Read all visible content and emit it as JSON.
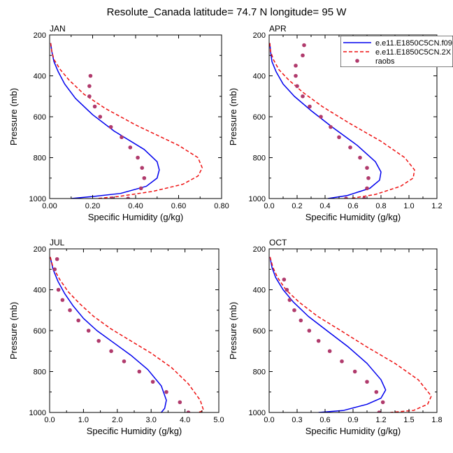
{
  "title": "Resolute_Canada  latitude= 74.7 N longitude= 95 W",
  "colors": {
    "model1": "#0000ee",
    "model2": "#ee1111",
    "raobs": "#b03a6c",
    "frame": "#000000"
  },
  "legend": {
    "items": [
      {
        "label": "e.e11.E1850C5CN.f09",
        "style": "solid"
      },
      {
        "label": "e.e11.E1850C5CN.2X",
        "style": "dashed"
      },
      {
        "label": "raobs",
        "style": "dots"
      }
    ]
  },
  "chart_data": [
    {
      "type": "line",
      "panel": "JAN",
      "title": "JAN",
      "xlabel": "Specific Humidity (g/kg)",
      "ylabel": "Pressure (mb)",
      "xlim": [
        0,
        0.8
      ],
      "ylim": [
        1000,
        200
      ],
      "xticks": [
        0,
        0.2,
        0.4,
        0.6,
        0.8
      ],
      "xtick_labels": [
        "0.00",
        "0.20",
        "0.40",
        "0.60",
        "0.80"
      ],
      "yticks": [
        200,
        400,
        600,
        800,
        1000
      ],
      "ytick_labels": [
        "200",
        "400",
        "600",
        "800",
        "1000"
      ],
      "series": [
        {
          "name": "e.e11.E1850C5CN.f09",
          "style": "solid",
          "x": [
            0.005,
            0.01,
            0.02,
            0.04,
            0.07,
            0.12,
            0.2,
            0.3,
            0.44,
            0.5,
            0.51,
            0.5,
            0.45,
            0.33,
            0.2,
            0.1
          ],
          "y": [
            240,
            280,
            330,
            380,
            440,
            510,
            590,
            670,
            760,
            820,
            860,
            900,
            940,
            975,
            990,
            1000
          ]
        },
        {
          "name": "e.e11.E1850C5CN.2X",
          "style": "dashed",
          "x": [
            0.005,
            0.01,
            0.02,
            0.05,
            0.09,
            0.16,
            0.26,
            0.4,
            0.6,
            0.69,
            0.71,
            0.69,
            0.62,
            0.48,
            0.32,
            0.22
          ],
          "y": [
            240,
            280,
            320,
            370,
            420,
            490,
            560,
            640,
            740,
            800,
            850,
            890,
            930,
            965,
            990,
            1000
          ]
        },
        {
          "name": "raobs",
          "style": "dots",
          "x": [
            0.19,
            0.185,
            0.185,
            0.21,
            0.235,
            0.285,
            0.335,
            0.375,
            0.41,
            0.43,
            0.44,
            0.425,
            0.365,
            0.29
          ],
          "y": [
            400,
            450,
            500,
            550,
            600,
            650,
            700,
            750,
            800,
            850,
            900,
            950,
            1000,
            1000
          ]
        }
      ]
    },
    {
      "type": "line",
      "panel": "APR",
      "title": "APR",
      "xlabel": "Specific Humidity (g/kg)",
      "ylabel": "Pressure (mb)",
      "xlim": [
        0,
        1.2
      ],
      "ylim": [
        1000,
        200
      ],
      "xticks": [
        0,
        0.2,
        0.4,
        0.6,
        0.8,
        1.0,
        1.2
      ],
      "xtick_labels": [
        "0.0",
        "0.2",
        "0.4",
        "0.6",
        "0.8",
        "1.0",
        "1.2"
      ],
      "yticks": [
        200,
        400,
        600,
        800,
        1000
      ],
      "ytick_labels": [
        "200",
        "400",
        "600",
        "800",
        "1000"
      ],
      "series": [
        {
          "name": "e.e11.E1850C5CN.f09",
          "style": "solid",
          "x": [
            0.005,
            0.01,
            0.02,
            0.05,
            0.1,
            0.18,
            0.3,
            0.45,
            0.63,
            0.76,
            0.8,
            0.79,
            0.72,
            0.56,
            0.42
          ],
          "y": [
            240,
            280,
            330,
            380,
            440,
            500,
            570,
            650,
            740,
            820,
            870,
            910,
            950,
            985,
            1000
          ]
        },
        {
          "name": "e.e11.E1850C5CN.2X",
          "style": "dashed",
          "x": [
            0.005,
            0.01,
            0.03,
            0.07,
            0.14,
            0.24,
            0.38,
            0.57,
            0.8,
            0.97,
            1.04,
            1.03,
            0.94,
            0.76,
            0.58
          ],
          "y": [
            240,
            280,
            320,
            370,
            420,
            480,
            550,
            630,
            720,
            800,
            860,
            900,
            940,
            980,
            1000
          ]
        },
        {
          "name": "raobs",
          "style": "dots",
          "x": [
            0.25,
            0.24,
            0.19,
            0.19,
            0.2,
            0.24,
            0.29,
            0.37,
            0.44,
            0.5,
            0.58,
            0.65,
            0.7,
            0.71,
            0.7,
            0.68,
            0.55
          ],
          "y": [
            250,
            300,
            350,
            400,
            450,
            500,
            550,
            600,
            650,
            700,
            750,
            800,
            850,
            900,
            950,
            1000,
            1000
          ]
        }
      ]
    },
    {
      "type": "line",
      "panel": "JUL",
      "title": "JUL",
      "xlabel": "Specific Humidity (g/kg)",
      "ylabel": "Pressure (mb)",
      "xlim": [
        0,
        5.0
      ],
      "ylim": [
        1000,
        200
      ],
      "xticks": [
        0,
        1,
        2,
        3,
        4,
        5
      ],
      "xtick_labels": [
        "0.0",
        "1.0",
        "2.0",
        "3.0",
        "4.0",
        "5.0"
      ],
      "yticks": [
        200,
        400,
        600,
        800,
        1000
      ],
      "ytick_labels": [
        "200",
        "400",
        "600",
        "800",
        "1000"
      ],
      "series": [
        {
          "name": "e.e11.E1850C5CN.f09",
          "style": "solid",
          "x": [
            0.02,
            0.1,
            0.25,
            0.45,
            0.7,
            1.0,
            1.4,
            1.9,
            2.4,
            2.9,
            3.3,
            3.45,
            3.4,
            3.3
          ],
          "y": [
            240,
            300,
            360,
            420,
            480,
            540,
            600,
            660,
            720,
            790,
            870,
            940,
            980,
            1000
          ]
        },
        {
          "name": "e.e11.E1850C5CN.2X",
          "style": "dashed",
          "x": [
            0.02,
            0.1,
            0.3,
            0.55,
            0.9,
            1.3,
            1.8,
            2.4,
            3.0,
            3.6,
            4.1,
            4.45,
            4.55,
            4.4
          ],
          "y": [
            240,
            290,
            350,
            410,
            470,
            530,
            590,
            650,
            710,
            780,
            860,
            940,
            990,
            1000
          ]
        },
        {
          "name": "raobs",
          "style": "dots",
          "x": [
            0.22,
            0.15,
            0.26,
            0.38,
            0.6,
            0.85,
            1.15,
            1.45,
            1.82,
            2.2,
            2.65,
            3.05,
            3.45,
            3.85,
            4.1
          ],
          "y": [
            250,
            300,
            400,
            450,
            500,
            550,
            600,
            650,
            700,
            750,
            800,
            850,
            900,
            950,
            1000
          ]
        }
      ]
    },
    {
      "type": "line",
      "panel": "OCT",
      "title": "OCT",
      "xlabel": "Specific Humidity (g/kg)",
      "ylabel": "Pressure (mb)",
      "xlim": [
        0,
        1.8
      ],
      "ylim": [
        1000,
        200
      ],
      "xticks": [
        0,
        0.3,
        0.6,
        0.9,
        1.2,
        1.5,
        1.8
      ],
      "xtick_labels": [
        "0.0",
        "0.3",
        "0.6",
        "0.9",
        "1.2",
        "1.5",
        "1.8"
      ],
      "yticks": [
        200,
        400,
        600,
        800,
        1000
      ],
      "ytick_labels": [
        "200",
        "400",
        "600",
        "800",
        "1000"
      ],
      "series": [
        {
          "name": "e.e11.E1850C5CN.f09",
          "style": "solid",
          "x": [
            0.01,
            0.03,
            0.07,
            0.15,
            0.26,
            0.42,
            0.62,
            0.85,
            1.05,
            1.2,
            1.25,
            1.2,
            1.05,
            0.8,
            0.53
          ],
          "y": [
            240,
            290,
            340,
            400,
            460,
            530,
            600,
            680,
            760,
            840,
            890,
            930,
            960,
            990,
            1000
          ]
        },
        {
          "name": "e.e11.E1850C5CN.2X",
          "style": "dashed",
          "x": [
            0.01,
            0.04,
            0.09,
            0.18,
            0.32,
            0.52,
            0.77,
            1.05,
            1.35,
            1.6,
            1.74,
            1.7,
            1.55,
            1.3
          ],
          "y": [
            240,
            290,
            340,
            400,
            460,
            530,
            600,
            680,
            760,
            840,
            920,
            960,
            990,
            1000
          ]
        },
        {
          "name": "raobs",
          "style": "dots",
          "x": [
            0.16,
            0.19,
            0.22,
            0.27,
            0.34,
            0.43,
            0.53,
            0.65,
            0.78,
            0.92,
            1.05,
            1.15,
            1.22,
            1.18
          ],
          "y": [
            350,
            400,
            450,
            500,
            550,
            600,
            650,
            700,
            750,
            800,
            850,
            900,
            950,
            1000
          ]
        }
      ]
    }
  ]
}
